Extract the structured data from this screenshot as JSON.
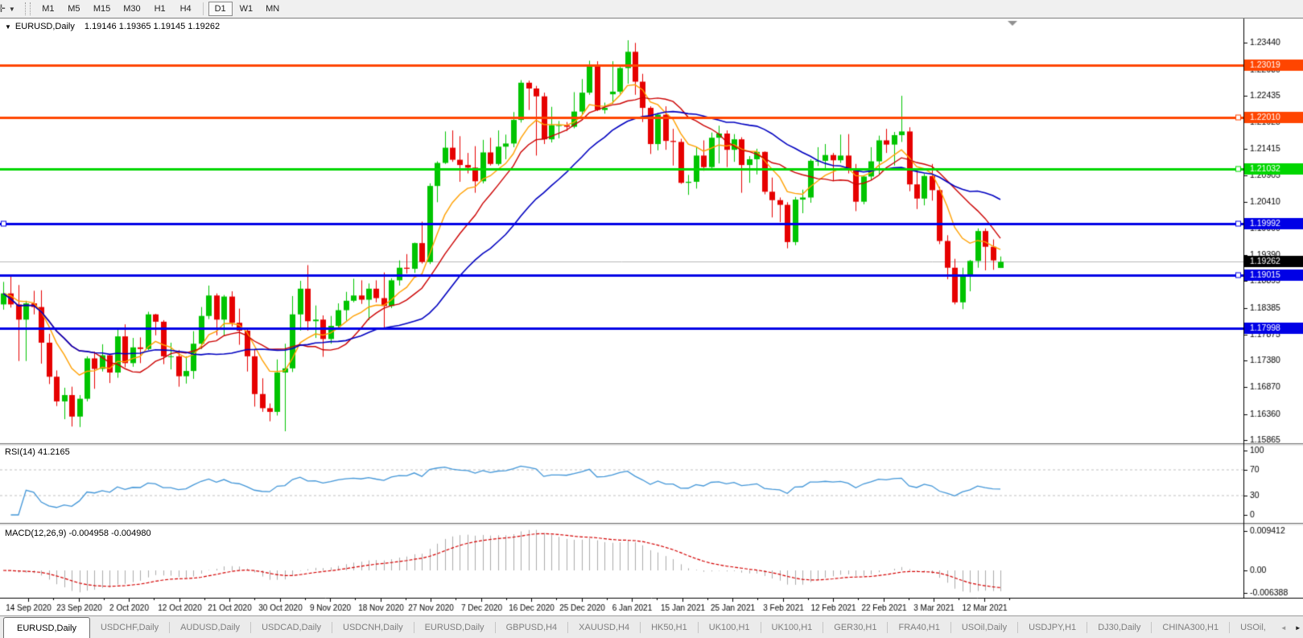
{
  "toolbar": {
    "cursor_tool_icon": "crosshair",
    "timeframes": [
      "M1",
      "M5",
      "M15",
      "M30",
      "H1",
      "H4",
      "D1",
      "W1",
      "MN"
    ],
    "active_timeframe": "D1"
  },
  "icons": {
    "crosshair": "✛",
    "dropdown_caret": "▼",
    "chart_caret": "▼",
    "scroll_left": "◄",
    "scroll_right": "►"
  },
  "chart": {
    "symbol_label": "EURUSD,Daily",
    "ohlc_label": "1.19146 1.19365 1.19145 1.19262"
  },
  "indicator_labels": {
    "rsi": "RSI(14) 41.2165",
    "macd": "MACD(12,26,9) -0.004958 -0.004980"
  },
  "chart_data": {
    "type": "candlestick",
    "title": "EURUSD,Daily",
    "bull_color": "#00C400",
    "bear_color": "#E60000",
    "y_range": [
      1.158,
      1.2389
    ],
    "y_ticks": [
      "1.23440",
      "1.22930",
      "1.22435",
      "1.21925",
      "1.21415",
      "1.20905",
      "1.20410",
      "1.19900",
      "1.19390",
      "1.18895",
      "1.18385",
      "1.17875",
      "1.17380",
      "1.16870",
      "1.16360",
      "1.15865"
    ],
    "x_labels": [
      "14 Sep 2020",
      "23 Sep 2020",
      "2 Oct 2020",
      "12 Oct 2020",
      "21 Oct 2020",
      "30 Oct 2020",
      "9 Nov 2020",
      "18 Nov 2020",
      "27 Nov 2020",
      "7 Dec 2020",
      "16 Dec 2020",
      "25 Dec 2020",
      "6 Jan 2021",
      "15 Jan 2021",
      "25 Jan 2021",
      "3 Feb 2021",
      "12 Feb 2021",
      "22 Feb 2021",
      "3 Mar 2021",
      "12 Mar 2021"
    ],
    "ohlc": [
      [
        1.1845,
        1.1888,
        1.1835,
        1.1866
      ],
      [
        1.1866,
        1.19,
        1.1839,
        1.1845
      ],
      [
        1.1845,
        1.1882,
        1.1737,
        1.1816
      ],
      [
        1.1816,
        1.1852,
        1.1737,
        1.1847
      ],
      [
        1.1847,
        1.1871,
        1.1826,
        1.184
      ],
      [
        1.184,
        1.1872,
        1.1732,
        1.1772
      ],
      [
        1.1772,
        1.1789,
        1.1693,
        1.1707
      ],
      [
        1.1707,
        1.1719,
        1.1651,
        1.166
      ],
      [
        1.166,
        1.1686,
        1.1626,
        1.1672
      ],
      [
        1.1672,
        1.1688,
        1.1612,
        1.1631
      ],
      [
        1.1631,
        1.1672,
        1.1611,
        1.1665
      ],
      [
        1.1665,
        1.1746,
        1.166,
        1.1742
      ],
      [
        1.1742,
        1.1755,
        1.1684,
        1.1722
      ],
      [
        1.1722,
        1.1769,
        1.1717,
        1.1748
      ],
      [
        1.1748,
        1.175,
        1.1695,
        1.1715
      ],
      [
        1.1715,
        1.1797,
        1.1705,
        1.1784
      ],
      [
        1.1784,
        1.1807,
        1.1725,
        1.1733
      ],
      [
        1.1733,
        1.1781,
        1.1726,
        1.1763
      ],
      [
        1.1763,
        1.1782,
        1.1733,
        1.176
      ],
      [
        1.176,
        1.1831,
        1.1758,
        1.1826
      ],
      [
        1.1826,
        1.1827,
        1.1786,
        1.1812
      ],
      [
        1.1812,
        1.1815,
        1.1731,
        1.1746
      ],
      [
        1.1746,
        1.1772,
        1.1721,
        1.1746
      ],
      [
        1.1746,
        1.1758,
        1.1688,
        1.1708
      ],
      [
        1.1708,
        1.1746,
        1.1694,
        1.1718
      ],
      [
        1.1718,
        1.1794,
        1.1703,
        1.177
      ],
      [
        1.177,
        1.184,
        1.176,
        1.1823
      ],
      [
        1.1823,
        1.1881,
        1.1817,
        1.1862
      ],
      [
        1.1862,
        1.1866,
        1.1786,
        1.1816
      ],
      [
        1.1816,
        1.1863,
        1.1785,
        1.186
      ],
      [
        1.186,
        1.187,
        1.1803,
        1.181
      ],
      [
        1.181,
        1.1837,
        1.1768,
        1.1795
      ],
      [
        1.1795,
        1.18,
        1.1717,
        1.1746
      ],
      [
        1.1746,
        1.1759,
        1.165,
        1.1674
      ],
      [
        1.1674,
        1.1704,
        1.164,
        1.1647
      ],
      [
        1.1647,
        1.1656,
        1.1622,
        1.164
      ],
      [
        1.164,
        1.174,
        1.1633,
        1.1715
      ],
      [
        1.1715,
        1.177,
        1.1603,
        1.1723
      ],
      [
        1.1723,
        1.1861,
        1.1716,
        1.1826
      ],
      [
        1.1826,
        1.189,
        1.1795,
        1.1875
      ],
      [
        1.1875,
        1.192,
        1.1795,
        1.1813
      ],
      [
        1.1813,
        1.1843,
        1.1781,
        1.1816
      ],
      [
        1.1816,
        1.1824,
        1.1745,
        1.1779
      ],
      [
        1.1779,
        1.1823,
        1.177,
        1.1804
      ],
      [
        1.1804,
        1.1847,
        1.1799,
        1.1834
      ],
      [
        1.1834,
        1.1869,
        1.1814,
        1.1852
      ],
      [
        1.1852,
        1.1894,
        1.1849,
        1.1862
      ],
      [
        1.1862,
        1.1891,
        1.1846,
        1.1854
      ],
      [
        1.1854,
        1.1885,
        1.1815,
        1.1875
      ],
      [
        1.1875,
        1.1891,
        1.1849,
        1.1857
      ],
      [
        1.1857,
        1.1906,
        1.18,
        1.1842
      ],
      [
        1.1842,
        1.1895,
        1.1838,
        1.1891
      ],
      [
        1.1891,
        1.1929,
        1.1881,
        1.1915
      ],
      [
        1.1915,
        1.1941,
        1.1904,
        1.1913
      ],
      [
        1.1913,
        1.1963,
        1.1905,
        1.1962
      ],
      [
        1.1962,
        1.2003,
        1.1923,
        1.1926
      ],
      [
        1.1926,
        1.2076,
        1.1922,
        1.2071
      ],
      [
        1.2071,
        1.2118,
        1.204,
        1.2115
      ],
      [
        1.2115,
        1.2175,
        1.2113,
        1.2144
      ],
      [
        1.2144,
        1.2177,
        1.2117,
        1.2121
      ],
      [
        1.2121,
        1.2166,
        1.2079,
        1.2111
      ],
      [
        1.2111,
        1.2134,
        1.2095,
        1.2106
      ],
      [
        1.2106,
        1.2147,
        1.2058,
        1.208
      ],
      [
        1.208,
        1.2159,
        1.2076,
        1.2135
      ],
      [
        1.2135,
        1.2163,
        1.211,
        1.2113
      ],
      [
        1.2113,
        1.2177,
        1.211,
        1.2146
      ],
      [
        1.2146,
        1.2169,
        1.2122,
        1.2152
      ],
      [
        1.2152,
        1.2212,
        1.2145,
        1.2197
      ],
      [
        1.2197,
        1.2273,
        1.2192,
        1.2268
      ],
      [
        1.2268,
        1.2272,
        1.2216,
        1.2257
      ],
      [
        1.2257,
        1.2262,
        1.2129,
        1.2242
      ],
      [
        1.2242,
        1.2249,
        1.2151,
        1.216
      ],
      [
        1.216,
        1.2222,
        1.2154,
        1.2187
      ],
      [
        1.2187,
        1.2195,
        1.2162,
        1.2187
      ],
      [
        1.2187,
        1.2193,
        1.2176,
        1.2184
      ],
      [
        1.2184,
        1.225,
        1.2181,
        1.2213
      ],
      [
        1.2213,
        1.2275,
        1.2208,
        1.2249
      ],
      [
        1.2249,
        1.231,
        1.2245,
        1.2299
      ],
      [
        1.2299,
        1.2309,
        1.2214,
        1.2216
      ],
      [
        1.2216,
        1.223,
        1.2209,
        1.222
      ],
      [
        1.2246,
        1.2309,
        1.2228,
        1.2251
      ],
      [
        1.2251,
        1.2303,
        1.2247,
        1.2296
      ],
      [
        1.2296,
        1.2349,
        1.2266,
        1.2327
      ],
      [
        1.2327,
        1.2344,
        1.2245,
        1.227
      ],
      [
        1.227,
        1.2285,
        1.2193,
        1.222
      ],
      [
        1.222,
        1.2223,
        1.2132,
        1.2151
      ],
      [
        1.2151,
        1.221,
        1.2139,
        1.2207
      ],
      [
        1.2207,
        1.2223,
        1.214,
        1.2157
      ],
      [
        1.2157,
        1.218,
        1.211,
        1.2155
      ],
      [
        1.2155,
        1.2161,
        1.2075,
        1.2077
      ],
      [
        1.2077,
        1.2092,
        1.2054,
        1.2079
      ],
      [
        1.2079,
        1.2145,
        1.2066,
        1.2129
      ],
      [
        1.2129,
        1.2158,
        1.21,
        1.2107
      ],
      [
        1.2107,
        1.2173,
        1.2103,
        1.2163
      ],
      [
        1.2163,
        1.2186,
        1.2114,
        1.2171
      ],
      [
        1.2171,
        1.2177,
        1.2107,
        1.214
      ],
      [
        1.214,
        1.217,
        1.2117,
        1.216
      ],
      [
        1.216,
        1.2164,
        1.2058,
        1.2111
      ],
      [
        1.2111,
        1.2128,
        1.2077,
        1.2122
      ],
      [
        1.2122,
        1.2142,
        1.2093,
        1.2136
      ],
      [
        1.2136,
        1.2137,
        1.2055,
        1.206
      ],
      [
        1.206,
        1.2087,
        1.2011,
        1.2044
      ],
      [
        1.2044,
        1.2049,
        1.2002,
        1.2035
      ],
      [
        1.2035,
        1.204,
        1.1952,
        1.1964
      ],
      [
        1.1964,
        1.205,
        1.1958,
        1.2045
      ],
      [
        1.2045,
        1.2064,
        1.2019,
        1.2049
      ],
      [
        1.2049,
        1.2122,
        1.2039,
        1.2119
      ],
      [
        1.2119,
        1.2145,
        1.2109,
        1.2119
      ],
      [
        1.2119,
        1.2151,
        1.2101,
        1.213
      ],
      [
        1.213,
        1.2134,
        1.208,
        1.212
      ],
      [
        1.212,
        1.2169,
        1.2115,
        1.2129
      ],
      [
        1.2129,
        1.217,
        1.2095,
        1.2105
      ],
      [
        1.2105,
        1.2113,
        1.2023,
        1.2041
      ],
      [
        1.2041,
        1.2091,
        1.2036,
        1.2089
      ],
      [
        1.2089,
        1.2145,
        1.2082,
        1.2118
      ],
      [
        1.2118,
        1.2167,
        1.2094,
        1.2158
      ],
      [
        1.2158,
        1.218,
        1.2134,
        1.215
      ],
      [
        1.215,
        1.2174,
        1.211,
        1.2168
      ],
      [
        1.2168,
        1.2243,
        1.2155,
        1.2175
      ],
      [
        1.2175,
        1.2183,
        1.2061,
        1.2074
      ],
      [
        1.2074,
        1.2101,
        1.2027,
        1.2047
      ],
      [
        1.2047,
        1.2094,
        1.2034,
        1.209
      ],
      [
        1.209,
        1.2113,
        1.2043,
        1.2063
      ],
      [
        1.2063,
        1.2069,
        1.196,
        1.1966
      ],
      [
        1.1966,
        1.1977,
        1.1893,
        1.1915
      ],
      [
        1.1915,
        1.1932,
        1.1845,
        1.1849
      ],
      [
        1.1849,
        1.1915,
        1.1836,
        1.19
      ],
      [
        1.19,
        1.193,
        1.187,
        1.1928
      ],
      [
        1.1928,
        1.199,
        1.1915,
        1.1985
      ],
      [
        1.1985,
        1.199,
        1.191,
        1.1955
      ],
      [
        1.1955,
        1.1969,
        1.1911,
        1.1929
      ],
      [
        1.19146,
        1.19365,
        1.19145,
        1.19262
      ]
    ],
    "moving_averages": [
      {
        "name": "ma-fast",
        "method": "ema",
        "period": 8,
        "color": "#FFA000",
        "width": 1.4
      },
      {
        "name": "ma-mid",
        "method": "sma",
        "period": 13,
        "color": "#CC0000",
        "width": 1.4
      },
      {
        "name": "ma-slow",
        "method": "sma",
        "period": 25,
        "color": "#0000C0",
        "width": 1.6
      }
    ],
    "horizontal_lines": [
      {
        "price": 1.23019,
        "label": "1.23019",
        "color": "#FF4500",
        "width": 3,
        "anchor": false
      },
      {
        "price": 1.2201,
        "label": "1.22010",
        "color": "#FF4500",
        "width": 3,
        "anchor": true
      },
      {
        "price": 1.21032,
        "label": "1.21032",
        "color": "#00D600",
        "width": 3,
        "anchor": true
      },
      {
        "price": 1.19992,
        "label": "1.19992",
        "color": "#0000E6",
        "width": 3,
        "anchor": true
      },
      {
        "price": 1.19015,
        "label": "1.19015",
        "color": "#0000E6",
        "width": 3,
        "anchor": true
      },
      {
        "price": 1.17998,
        "label": "1.17998",
        "color": "#0000E6",
        "width": 3,
        "anchor": false
      }
    ],
    "current_price": {
      "label": "1.19262",
      "price": 1.19262,
      "line_color": "#B8B8B8",
      "tag_bg": "#000000"
    },
    "rsi": {
      "period": 14,
      "value": 41.2165,
      "levels": [
        70,
        30
      ],
      "range": [
        0,
        100
      ],
      "y_ticks": [
        "100",
        "70",
        "30",
        "0"
      ],
      "color": "#4296D8",
      "level_color": "#C0C0C0"
    },
    "macd": {
      "fast": 12,
      "slow": 26,
      "signal": 9,
      "main_value": -0.004958,
      "signal_value": -0.00498,
      "range": [
        -0.006388,
        0.009412
      ],
      "y_ticks": [
        "0.009412",
        "0.00",
        "-0.006388"
      ],
      "histogram_color": "#ABABAB",
      "signal_color": "#D40000"
    }
  },
  "bottom_tabs": {
    "active_index": 0,
    "tabs": [
      "EURUSD,Daily",
      "USDCHF,Daily",
      "AUDUSD,Daily",
      "USDCAD,Daily",
      "USDCNH,Daily",
      "EURUSD,Daily",
      "GBPUSD,H4",
      "XAUUSD,H4",
      "HK50,H1",
      "UK100,H1",
      "UK100,H1",
      "GER30,H1",
      "FRA40,H1",
      "USOil,Daily",
      "USDJPY,H1",
      "DJ30,Daily",
      "CHINA300,H1",
      "USOil,"
    ]
  }
}
